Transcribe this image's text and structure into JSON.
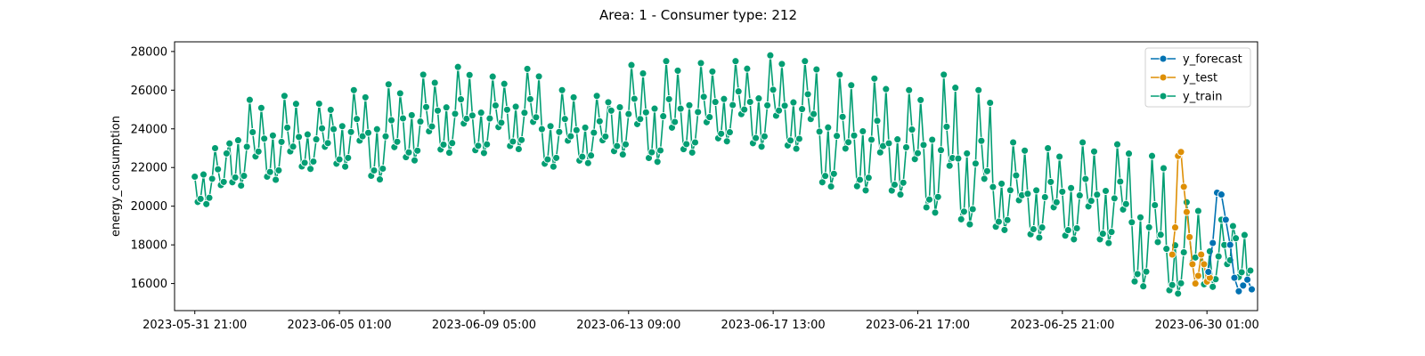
{
  "chart_data": {
    "type": "line",
    "title": "Area: 1 - Consumer type: 212",
    "xlabel": "",
    "ylabel": "energy_consumption",
    "x_unit": "hourly timestamps",
    "x_start": "2023-05-31 21:00",
    "x_tick_labels": [
      "2023-05-31 21:00",
      "2023-06-05 01:00",
      "2023-06-09 05:00",
      "2023-06-13 09:00",
      "2023-06-17 13:00",
      "2023-06-21 17:00",
      "2023-06-25 21:00",
      "2023-06-30 01:00"
    ],
    "y_ticks": [
      16000,
      18000,
      20000,
      22000,
      24000,
      26000,
      28000
    ],
    "ylim": [
      14600,
      28500
    ],
    "xlim": [
      "2023-05-31 07:00",
      "2023-07-01 12:00"
    ],
    "grid": false,
    "legend_position": "top-right",
    "series": [
      {
        "name": "y_forecast",
        "color": "#0072b2",
        "x_start": "2023-06-30 02:00",
        "x_step_hours": 3,
        "values": [
          16600,
          18100,
          20700,
          20600,
          19300,
          18000,
          16300,
          15600,
          15900,
          16200,
          15700
        ]
      },
      {
        "name": "y_test",
        "color": "#de8f05",
        "x_start": "2023-06-29 01:00",
        "x_step_hours": 2,
        "values": [
          17500,
          18900,
          22600,
          22800,
          21000,
          19700,
          18400,
          17000,
          16000,
          16400,
          17500,
          17000,
          16100,
          16300
        ]
      },
      {
        "name": "y_train",
        "color": "#029e73",
        "x_start": "2023-05-31 21:00",
        "x_step_hours": 2,
        "segments_note": "daily pattern",
        "daily_pattern_values": [
          22800,
          21500,
          20400,
          20700,
          22600,
          23000,
          21400,
          20200,
          20000,
          20800,
          22600,
          24900,
          25500,
          24700,
          23500,
          22400,
          22000,
          22300,
          23400,
          25000
        ],
        "daily_peaks": [
          23000,
          25500,
          25700,
          25300,
          26000,
          26300,
          26800,
          27200,
          26700,
          27100,
          26000,
          25700,
          27300,
          27500,
          27400,
          27500,
          27800,
          27500,
          26800,
          26600,
          26000,
          26800,
          26000,
          23300,
          23000,
          23300,
          23200,
          22600,
          20200,
          19300,
          20600
        ],
        "daily_troughs": [
          20000,
          20900,
          21200,
          21800,
          21900,
          21200,
          22200,
          22600,
          22600,
          22800,
          21900,
          22100,
          22500,
          22100,
          22600,
          23200,
          22900,
          22800,
          20800,
          20600,
          20400,
          19400,
          18800,
          18600,
          18200,
          18100,
          17900,
          15600,
          15300,
          15700,
          16000
        ]
      }
    ]
  }
}
